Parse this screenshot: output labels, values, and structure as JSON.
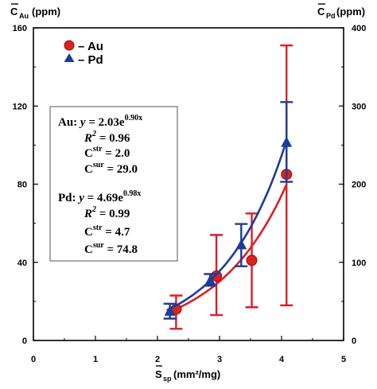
{
  "chart_data": {
    "type": "scatter",
    "x_axis": {
      "label_main": "S",
      "label_sub": "sp",
      "label_unit": "(mm²/mg)",
      "range": [
        0,
        5
      ],
      "ticks": [
        "0",
        "1",
        "2",
        "3",
        "4",
        "5"
      ]
    },
    "y_left_axis": {
      "label_main": "C",
      "label_sub": "Au",
      "label_unit": "(ppm)",
      "range": [
        0,
        160
      ],
      "ticks": [
        "0",
        "40",
        "80",
        "120",
        "160"
      ]
    },
    "y_right_axis": {
      "label_main": "C",
      "label_sub": "Pd",
      "label_unit": "(ppm)",
      "range": [
        0,
        400
      ],
      "ticks": [
        "0",
        "100",
        "200",
        "300",
        "400"
      ]
    },
    "legend_placement": "top-left",
    "series": [
      {
        "name": "– Au",
        "axis": "left",
        "color": "#d91f26",
        "marker": "circle",
        "points": [
          {
            "x": 2.3,
            "y": 16,
            "err_low": 6,
            "err_high": 23
          },
          {
            "x": 2.95,
            "y": 33,
            "err_low": 13,
            "err_high": 54
          },
          {
            "x": 3.52,
            "y": 41,
            "err_low": 17,
            "err_high": 65
          },
          {
            "x": 4.08,
            "y": 85,
            "err_low": 18,
            "err_high": 151
          }
        ],
        "fit": {
          "a": 2.03,
          "b": 0.9,
          "x_from": 2.25,
          "x_to": 4.08
        }
      },
      {
        "name": "– Pd",
        "axis": "right",
        "color": "#1c3c9c",
        "marker": "triangle",
        "points": [
          {
            "x": 2.2,
            "y": 37,
            "err_low": 28,
            "err_high": 47
          },
          {
            "x": 2.85,
            "y": 76,
            "err_low": 70,
            "err_high": 85
          },
          {
            "x": 3.35,
            "y": 122,
            "err_low": 95,
            "err_high": 149
          },
          {
            "x": 4.08,
            "y": 253,
            "err_low": 203,
            "err_high": 305
          }
        ],
        "fit": {
          "a": 4.69,
          "b": 0.98,
          "x_from": 2.15,
          "x_to": 4.08
        }
      }
    ],
    "annotations": {
      "au": {
        "prefix": "Au: ",
        "y_eq": "y",
        "eq_rest": " = 2.03e",
        "exp": "0.90x",
        "r2_label": "R",
        "r2_value": " = 0.96",
        "cstr_label": "C",
        "cstr_sup": "str",
        "cstr_value": " =   2.0",
        "csur_label": "C",
        "csur_sup": "sur",
        "csur_value": " = 29.0"
      },
      "pd": {
        "prefix": "Pd: ",
        "y_eq": "y",
        "eq_rest": " = 4.69e",
        "exp": "0.98x",
        "r2_label": "R",
        "r2_value": " = 0.99",
        "cstr_label": "C",
        "cstr_sup": "str",
        "cstr_value": " =   4.7",
        "csur_label": "C",
        "csur_sup": "sur",
        "csur_value": " = 74.8"
      },
      "r2_sup": "2"
    }
  }
}
